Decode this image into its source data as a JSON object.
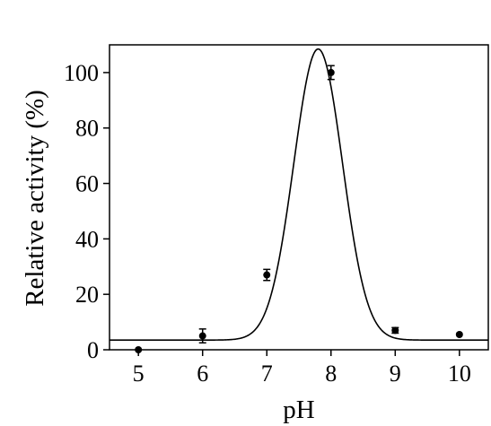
{
  "chart_data": {
    "type": "scatter",
    "xlabel": "pH",
    "ylabel": "Relative activity (%)",
    "xlim": [
      4.55,
      10.45
    ],
    "ylim": [
      0,
      110
    ],
    "x_ticks": [
      5,
      6,
      7,
      8,
      9,
      10
    ],
    "y_ticks": [
      0,
      20,
      40,
      60,
      80,
      100
    ],
    "grid": false,
    "points": [
      {
        "x": 5,
        "y": 0,
        "err": 0
      },
      {
        "x": 6,
        "y": 5,
        "err": 2.5
      },
      {
        "x": 7,
        "y": 27,
        "err": 2
      },
      {
        "x": 8,
        "y": 100,
        "err": 2.5
      },
      {
        "x": 9,
        "y": 7,
        "err": 1
      },
      {
        "x": 10,
        "y": 5.5,
        "err": 0
      }
    ],
    "fit_curve": {
      "type": "gaussian",
      "baseline": 3.5,
      "peak_x": 7.8,
      "peak_height": 105,
      "width_sigma": 0.38
    },
    "colors": {
      "points": "#000000",
      "curve": "#000000",
      "axes": "#000000"
    }
  }
}
